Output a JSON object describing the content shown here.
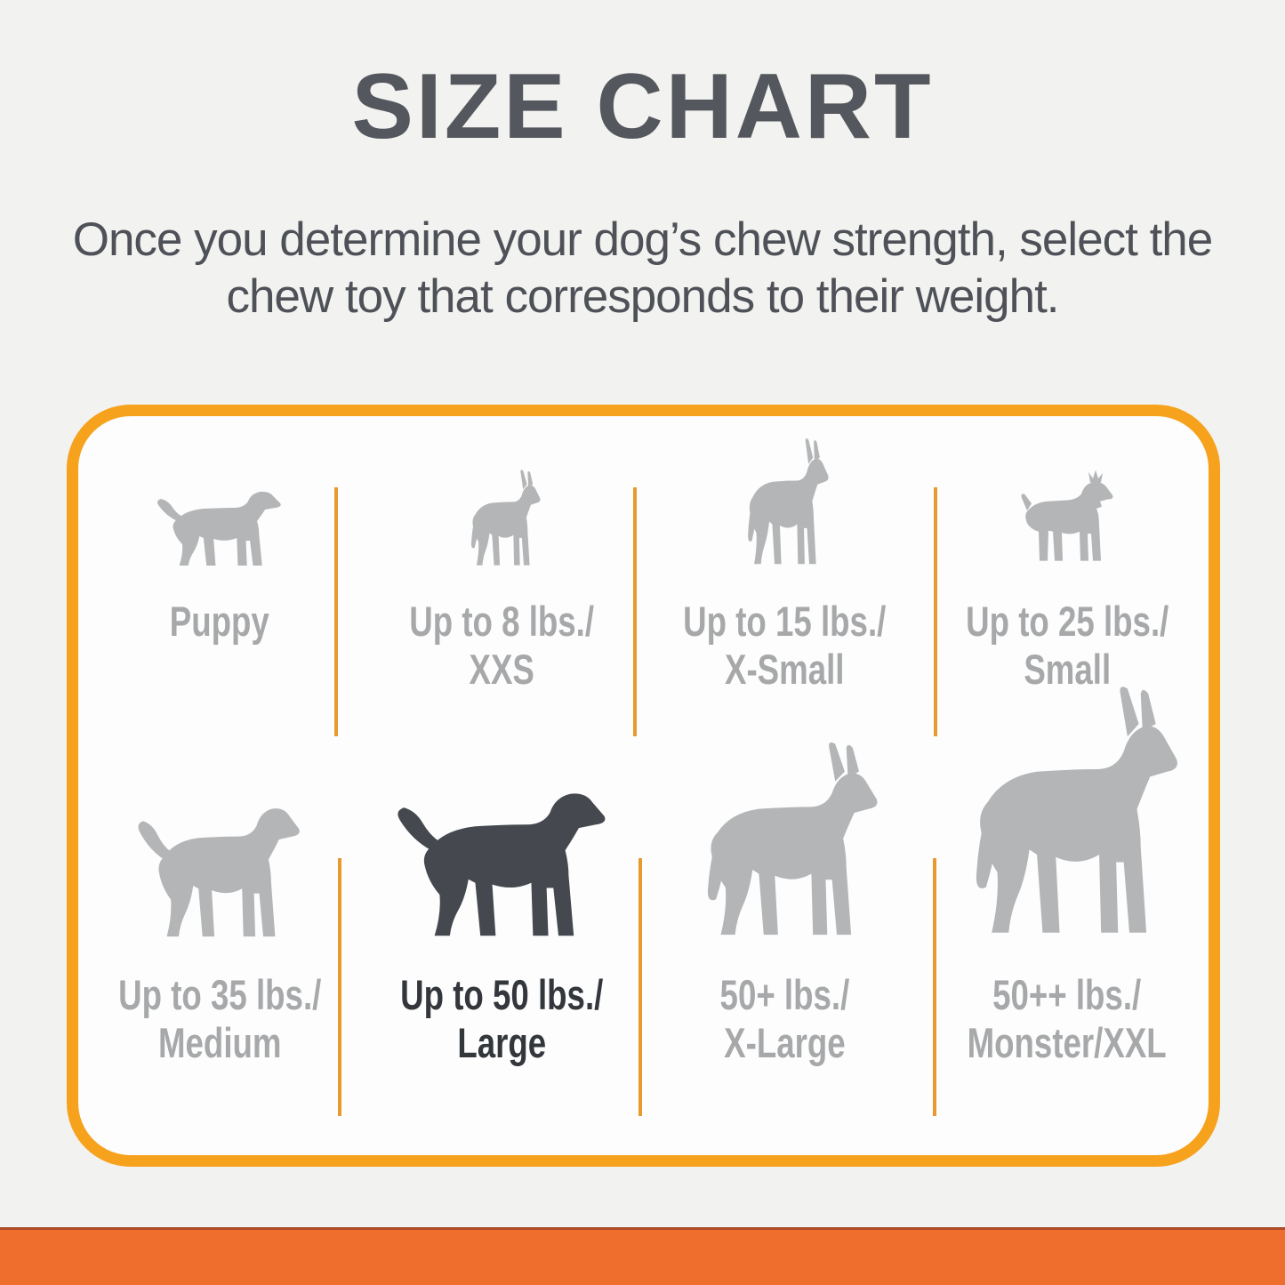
{
  "page": {
    "title": "SIZE CHART",
    "subtitle_lines": [
      "Once you determine your dog’s chew strength, select the",
      "chew toy that corresponds to their weight."
    ]
  },
  "colors": {
    "background": "#f2f2f0",
    "title_text": "#54575d",
    "subtitle_text": "#4e5157",
    "card_background": "#fdfdfd",
    "card_border": "#f6a21d",
    "divider": "#e79b2f",
    "silhouette_light": "#b3b5b7",
    "silhouette_dark": "#45494f",
    "label_light": "#a6a8aa",
    "label_dark": "#33373c",
    "bottom_bar": "#ef6e2e",
    "bottom_bar_edge": "#ae4b28"
  },
  "size_chart": {
    "cells": [
      {
        "id": "puppy",
        "icon": "puppy-dog-icon",
        "label_lines": [
          "Puppy"
        ],
        "highlighted": false
      },
      {
        "id": "xxs",
        "icon": "chihuahua-dog-icon",
        "label_lines": [
          "Up to 8 lbs./",
          "XXS"
        ],
        "highlighted": false
      },
      {
        "id": "x-small",
        "icon": "min-pin-dog-icon",
        "label_lines": [
          "Up to 15 lbs./",
          "X-Small"
        ],
        "highlighted": false
      },
      {
        "id": "small",
        "icon": "terrier-dog-icon",
        "label_lines": [
          "Up to 25 lbs./",
          "Small"
        ],
        "highlighted": false
      },
      {
        "id": "medium",
        "icon": "beagle-dog-icon",
        "label_lines": [
          "Up to 35 lbs./",
          "Medium"
        ],
        "highlighted": false
      },
      {
        "id": "large",
        "icon": "labrador-dog-icon",
        "label_lines": [
          "Up to 50 lbs./",
          "Large"
        ],
        "highlighted": true
      },
      {
        "id": "x-large",
        "icon": "cattle-dog-icon",
        "label_lines": [
          "50+ lbs./",
          "X-Large"
        ],
        "highlighted": false
      },
      {
        "id": "monster-xxl",
        "icon": "great-dane-dog-icon",
        "label_lines": [
          "50++ lbs./",
          "Monster/XXL"
        ],
        "highlighted": false
      }
    ]
  }
}
